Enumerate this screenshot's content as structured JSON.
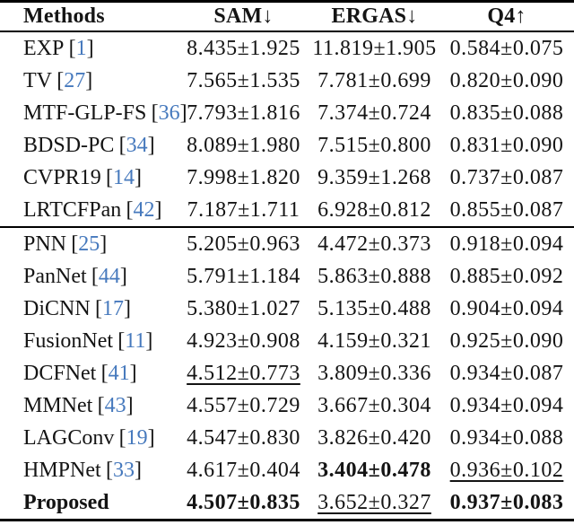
{
  "page": {
    "background": "#ffffff",
    "text_color": "#141414",
    "rule_color": "#000000",
    "citation_color": "#4679bd"
  },
  "table": {
    "headers": [
      "Methods",
      "SAM↓",
      "ERGAS↓",
      "Q4↑"
    ],
    "cite_open": "[",
    "cite_close": "]",
    "rows": [
      {
        "method": "EXP",
        "ref": "1",
        "sam": {
          "text": "8.435±1.925"
        },
        "ergas": {
          "text": "11.819±1.905"
        },
        "q4": {
          "text": "0.584±0.075"
        }
      },
      {
        "method": "TV",
        "ref": "27",
        "sam": {
          "text": "7.565±1.535"
        },
        "ergas": {
          "text": "7.781±0.699"
        },
        "q4": {
          "text": "0.820±0.090"
        }
      },
      {
        "method": "MTF-GLP-FS",
        "ref": "36",
        "sam": {
          "text": "7.793±1.816"
        },
        "ergas": {
          "text": "7.374±0.724"
        },
        "q4": {
          "text": "0.835±0.088"
        }
      },
      {
        "method": "BDSD-PC",
        "ref": "34",
        "sam": {
          "text": "8.089±1.980"
        },
        "ergas": {
          "text": "7.515±0.800"
        },
        "q4": {
          "text": "0.831±0.090"
        }
      },
      {
        "method": "CVPR19",
        "ref": "14",
        "sam": {
          "text": "7.998±1.820"
        },
        "ergas": {
          "text": "9.359±1.268"
        },
        "q4": {
          "text": "0.737±0.087"
        }
      },
      {
        "method": "LRTCFPan",
        "ref": "42",
        "sam": {
          "text": "7.187±1.711"
        },
        "ergas": {
          "text": "6.928±0.812"
        },
        "q4": {
          "text": "0.855±0.087"
        },
        "rule_after": true
      },
      {
        "method": "PNN",
        "ref": "25",
        "sam": {
          "text": "5.205±0.963"
        },
        "ergas": {
          "text": "4.472±0.373"
        },
        "q4": {
          "text": "0.918±0.094"
        }
      },
      {
        "method": "PanNet",
        "ref": "44",
        "sam": {
          "text": "5.791±1.184"
        },
        "ergas": {
          "text": "5.863±0.888"
        },
        "q4": {
          "text": "0.885±0.092"
        }
      },
      {
        "method": "DiCNN",
        "ref": "17",
        "sam": {
          "text": "5.380±1.027"
        },
        "ergas": {
          "text": "5.135±0.488"
        },
        "q4": {
          "text": "0.904±0.094"
        }
      },
      {
        "method": "FusionNet",
        "ref": "11",
        "sam": {
          "text": "4.923±0.908"
        },
        "ergas": {
          "text": "4.159±0.321"
        },
        "q4": {
          "text": "0.925±0.090"
        }
      },
      {
        "method": "DCFNet",
        "ref": "41",
        "sam": {
          "text": "4.512±0.773",
          "style": "underline"
        },
        "ergas": {
          "text": "3.809±0.336"
        },
        "q4": {
          "text": "0.934±0.087"
        }
      },
      {
        "method": "MMNet",
        "ref": "43",
        "sam": {
          "text": "4.557±0.729"
        },
        "ergas": {
          "text": "3.667±0.304"
        },
        "q4": {
          "text": "0.934±0.094"
        }
      },
      {
        "method": "LAGConv",
        "ref": "19",
        "sam": {
          "text": "4.547±0.830"
        },
        "ergas": {
          "text": "3.826±0.420"
        },
        "q4": {
          "text": "0.934±0.088"
        }
      },
      {
        "method": "HMPNet",
        "ref": "33",
        "sam": {
          "text": "4.617±0.404"
        },
        "ergas": {
          "text": "3.404±0.478",
          "style": "bold"
        },
        "q4": {
          "text": "0.936±0.102",
          "style": "underline"
        }
      },
      {
        "method": "Proposed",
        "ref": null,
        "method_bold": true,
        "sam": {
          "text": "4.507±0.835",
          "style": "bold"
        },
        "ergas": {
          "text": "3.652±0.327",
          "style": "underline"
        },
        "q4": {
          "text": "0.937±0.083",
          "style": "bold"
        }
      }
    ]
  }
}
